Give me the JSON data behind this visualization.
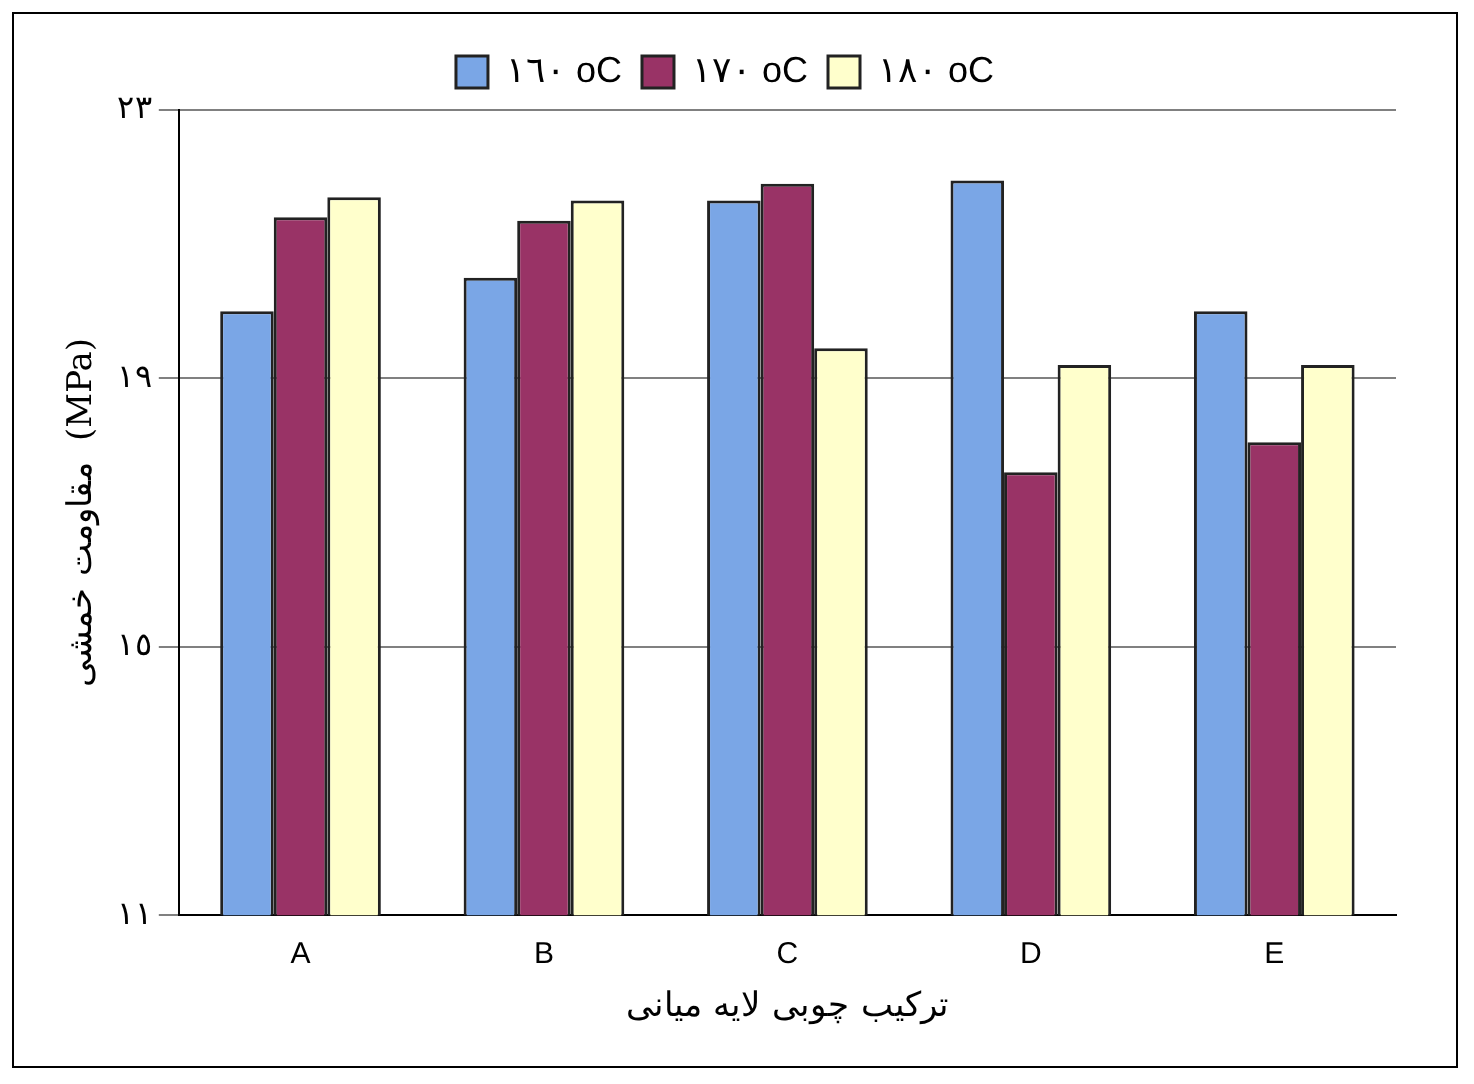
{
  "chart_data": {
    "type": "bar",
    "xlabel": "ترکیب چوبی لایه میانی",
    "ylabel": "مقاومت خمشی  (MPa)",
    "categories": [
      "A",
      "B",
      "C",
      "D",
      "E"
    ],
    "series": [
      {
        "name": "١٦٠ oC",
        "color": "#7aa6e6",
        "values": [
          20.0,
          20.5,
          21.65,
          21.95,
          20.0
        ]
      },
      {
        "name": "١٧٠ oC",
        "color": "#993366",
        "values": [
          21.4,
          21.35,
          21.9,
          17.6,
          18.05
        ]
      },
      {
        "name": "١٨٠ oC",
        "color": "#ffffcc",
        "values": [
          21.7,
          21.65,
          19.45,
          19.2,
          19.2
        ]
      }
    ],
    "ylim": [
      11,
      23
    ],
    "yticks": [
      {
        "value": 11,
        "label": "١١"
      },
      {
        "value": 15,
        "label": "١٥"
      },
      {
        "value": 19,
        "label": "١٩"
      },
      {
        "value": 23,
        "label": "٢٣"
      }
    ],
    "grid": "y",
    "legend": "top"
  }
}
